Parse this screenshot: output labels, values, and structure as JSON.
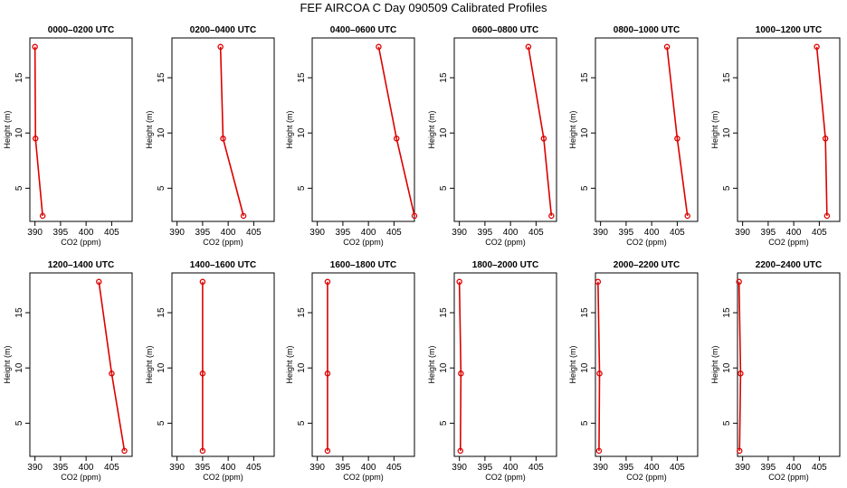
{
  "figure_title": "FEF AIRCOA C  Day 090509  Calibrated Profiles",
  "colors": {
    "profile": "#dd0000",
    "axes": "#000000"
  },
  "chart_data": [
    {
      "type": "line",
      "title": "0000–0200 UTC",
      "xlabel": "CO2 (ppm)",
      "ylabel": "Height (m)",
      "xlim": [
        389,
        409
      ],
      "ylim": [
        2,
        18.6
      ],
      "xticks": [
        390,
        395,
        400,
        405
      ],
      "yticks": [
        5,
        10,
        15
      ],
      "x": [
        390.0,
        390.1,
        391.5
      ],
      "y": [
        17.8,
        9.5,
        2.5
      ]
    },
    {
      "type": "line",
      "title": "0200–0400 UTC",
      "xlabel": "CO2 (ppm)",
      "ylabel": "Height (m)",
      "xlim": [
        389,
        409
      ],
      "ylim": [
        2,
        18.6
      ],
      "xticks": [
        390,
        395,
        400,
        405
      ],
      "yticks": [
        5,
        10,
        15
      ],
      "x": [
        398.5,
        399.0,
        403.0
      ],
      "y": [
        17.8,
        9.5,
        2.5
      ]
    },
    {
      "type": "line",
      "title": "0400–0600 UTC",
      "xlabel": "CO2 (ppm)",
      "ylabel": "Height (m)",
      "xlim": [
        389,
        409
      ],
      "ylim": [
        2,
        18.6
      ],
      "xticks": [
        390,
        395,
        400,
        405
      ],
      "yticks": [
        5,
        10,
        15
      ],
      "x": [
        402.0,
        405.5,
        409.0
      ],
      "y": [
        17.8,
        9.5,
        2.5
      ]
    },
    {
      "type": "line",
      "title": "0600–0800 UTC",
      "xlabel": "CO2 (ppm)",
      "ylabel": "Height (m)",
      "xlim": [
        389,
        409
      ],
      "ylim": [
        2,
        18.6
      ],
      "xticks": [
        390,
        395,
        400,
        405
      ],
      "yticks": [
        5,
        10,
        15
      ],
      "x": [
        403.5,
        406.5,
        408.0
      ],
      "y": [
        17.8,
        9.5,
        2.5
      ]
    },
    {
      "type": "line",
      "title": "0800–1000 UTC",
      "xlabel": "CO2 (ppm)",
      "ylabel": "Height (m)",
      "xlim": [
        389,
        409
      ],
      "ylim": [
        2,
        18.6
      ],
      "xticks": [
        390,
        395,
        400,
        405
      ],
      "yticks": [
        5,
        10,
        15
      ],
      "x": [
        403.0,
        405.0,
        407.0
      ],
      "y": [
        17.8,
        9.5,
        2.5
      ]
    },
    {
      "type": "line",
      "title": "1000–1200 UTC",
      "xlabel": "CO2 (ppm)",
      "ylabel": "Height (m)",
      "xlim": [
        389,
        409
      ],
      "ylim": [
        2,
        18.6
      ],
      "xticks": [
        390,
        395,
        400,
        405
      ],
      "yticks": [
        5,
        10,
        15
      ],
      "x": [
        404.5,
        406.2,
        406.5
      ],
      "y": [
        17.8,
        9.5,
        2.5
      ]
    },
    {
      "type": "line",
      "title": "1200–1400 UTC",
      "xlabel": "CO2 (ppm)",
      "ylabel": "Height (m)",
      "xlim": [
        389,
        409
      ],
      "ylim": [
        2,
        18.6
      ],
      "xticks": [
        390,
        395,
        400,
        405
      ],
      "yticks": [
        5,
        10,
        15
      ],
      "x": [
        402.5,
        405.0,
        407.5
      ],
      "y": [
        17.8,
        9.5,
        2.5
      ]
    },
    {
      "type": "line",
      "title": "1400–1600 UTC",
      "xlabel": "CO2 (ppm)",
      "ylabel": "Height (m)",
      "xlim": [
        389,
        409
      ],
      "ylim": [
        2,
        18.6
      ],
      "xticks": [
        390,
        395,
        400,
        405
      ],
      "yticks": [
        5,
        10,
        15
      ],
      "x": [
        395.0,
        395.0,
        395.0
      ],
      "y": [
        17.8,
        9.5,
        2.5
      ]
    },
    {
      "type": "line",
      "title": "1600–1800 UTC",
      "xlabel": "CO2 (ppm)",
      "ylabel": "Height (m)",
      "xlim": [
        389,
        409
      ],
      "ylim": [
        2,
        18.6
      ],
      "xticks": [
        390,
        395,
        400,
        405
      ],
      "yticks": [
        5,
        10,
        15
      ],
      "x": [
        392.0,
        392.0,
        392.0
      ],
      "y": [
        17.8,
        9.5,
        2.5
      ]
    },
    {
      "type": "line",
      "title": "1800–2000 UTC",
      "xlabel": "CO2 (ppm)",
      "ylabel": "Height (m)",
      "xlim": [
        389,
        409
      ],
      "ylim": [
        2,
        18.6
      ],
      "xticks": [
        390,
        395,
        400,
        405
      ],
      "yticks": [
        5,
        10,
        15
      ],
      "x": [
        390.0,
        390.3,
        390.2
      ],
      "y": [
        17.8,
        9.5,
        2.5
      ]
    },
    {
      "type": "line",
      "title": "2000–2200 UTC",
      "xlabel": "CO2 (ppm)",
      "ylabel": "Height (m)",
      "xlim": [
        389,
        409
      ],
      "ylim": [
        2,
        18.6
      ],
      "xticks": [
        390,
        395,
        400,
        405
      ],
      "yticks": [
        5,
        10,
        15
      ],
      "x": [
        389.5,
        389.8,
        389.7
      ],
      "y": [
        17.8,
        9.5,
        2.5
      ]
    },
    {
      "type": "line",
      "title": "2200–2400 UTC",
      "xlabel": "CO2 (ppm)",
      "ylabel": "Height (m)",
      "xlim": [
        389,
        409
      ],
      "ylim": [
        2,
        18.6
      ],
      "xticks": [
        390,
        395,
        400,
        405
      ],
      "yticks": [
        5,
        10,
        15
      ],
      "x": [
        389.3,
        389.6,
        389.4
      ],
      "y": [
        17.8,
        9.5,
        2.5
      ]
    }
  ]
}
